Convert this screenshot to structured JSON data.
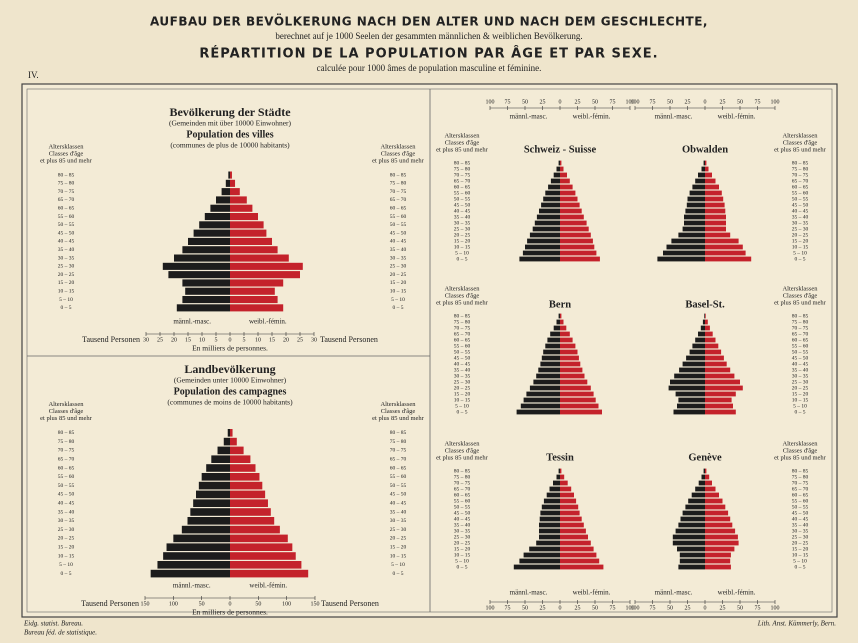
{
  "header": {
    "line1": "AUFBAU DER BEVÖLKERUNG NACH DEN ALTER UND NACH DEM GESCHLECHTE,",
    "line2": "berechnet auf je 1000 Seelen der gesammten männlichen & weiblichen Bevölkerung.",
    "line3": "RÉPARTITION DE LA POPULATION PAR ÂGE ET PAR SEXE.",
    "line4": "calculée pour 1000 âmes de population masculine et féminine.",
    "plate": "IV."
  },
  "footer": {
    "left1": "Eidg. statist. Bureau.",
    "left2": "Bureau féd. de statistique.",
    "right": "Lith. Anst. Kümmerly, Bern."
  },
  "chart_data": [
    {
      "type": "pyramid",
      "title": "Bevölkerung der Städte",
      "subtitle": "(Gemeinden mit über 10000 Einwohner)",
      "title_fr": "Population des villes",
      "subtitle_fr": "(communes de plus de 10000 habitants)",
      "age_header": [
        "Altersklassen",
        "Classes d'âge",
        "et plus 85 und mehr"
      ],
      "categories": [
        "0 – 5",
        "5 – 10",
        "10 – 15",
        "15 – 20",
        "20 – 25",
        "25 – 30",
        "30 – 35",
        "35 – 40",
        "40 – 45",
        "45 – 50",
        "50 – 55",
        "55 – 60",
        "60 – 65",
        "65 – 70",
        "70 – 75",
        "75 – 80",
        "80 – 85"
      ],
      "series": [
        {
          "name": "männl.-masc.",
          "color": "#1c1c1c",
          "values": [
            19,
            17,
            16,
            17,
            22,
            24,
            20,
            17,
            15,
            13,
            11,
            9,
            7,
            5,
            3,
            1.5,
            0.6
          ]
        },
        {
          "name": "weibl.-fémin.",
          "color": "#c4222b",
          "values": [
            19,
            17,
            16,
            19,
            25,
            26,
            21,
            17,
            15,
            13,
            12,
            10,
            8,
            6,
            3.5,
            1.8,
            0.7
          ]
        }
      ],
      "xlim": [
        0,
        30
      ],
      "xticks": [
        0,
        5,
        10,
        15,
        20,
        25,
        30
      ],
      "unit": "Tausend Personen",
      "unit_fr": "En milliers de personnes."
    },
    {
      "type": "pyramid",
      "title": "Landbevölkerung",
      "subtitle": "(Gemeinden unter 10000 Einwohner)",
      "title_fr": "Population des campagnes",
      "subtitle_fr": "(communes de moins de 10000 habitants)",
      "age_header": [
        "Altersklassen",
        "Classes d'âge",
        "et plus 85 und mehr"
      ],
      "categories": [
        "0 – 5",
        "5 – 10",
        "10 – 15",
        "15 – 20",
        "20 – 25",
        "25 – 30",
        "30 – 35",
        "35 – 40",
        "40 – 45",
        "45 – 50",
        "50 – 55",
        "55 – 60",
        "60 – 65",
        "65 – 70",
        "70 – 75",
        "75 – 80",
        "80 – 85"
      ],
      "series": [
        {
          "name": "männl.-masc.",
          "color": "#1c1c1c",
          "values": [
            140,
            128,
            118,
            112,
            100,
            85,
            75,
            70,
            65,
            60,
            55,
            50,
            42,
            33,
            22,
            11,
            4
          ]
        },
        {
          "name": "weibl.-fémin.",
          "color": "#c4222b",
          "values": [
            138,
            126,
            116,
            110,
            102,
            88,
            78,
            72,
            67,
            62,
            57,
            52,
            45,
            36,
            24,
            12,
            4.5
          ]
        }
      ],
      "xlim": [
        0,
        150
      ],
      "xticks": [
        0,
        50,
        100,
        150
      ],
      "unit": "Tausend Personen",
      "unit_fr": "En milliers de personnes."
    },
    {
      "type": "pyramid",
      "title": "Schweiz - Suisse",
      "age_header": [
        "Altersklassen",
        "Classes d'âge",
        "et plus 85 und mehr"
      ],
      "categories": [
        "0 – 5",
        "5 – 10",
        "10 – 15",
        "15 – 20",
        "20 – 25",
        "25 – 30",
        "30 – 35",
        "35 – 40",
        "40 – 45",
        "45 – 50",
        "50 – 55",
        "55 – 60",
        "60 – 65",
        "65 – 70",
        "70 – 75",
        "75 – 80",
        "80 – 85"
      ],
      "series": [
        {
          "name": "männl.-masc.",
          "color": "#1c1c1c",
          "values": [
            58,
            53,
            50,
            47,
            43,
            39,
            36,
            33,
            30,
            27,
            24,
            21,
            17,
            13,
            9,
            5,
            2
          ]
        },
        {
          "name": "weibl.-fémin.",
          "color": "#c4222b",
          "values": [
            57,
            52,
            49,
            47,
            44,
            41,
            38,
            34,
            31,
            28,
            25,
            22,
            18,
            14,
            10,
            5,
            2
          ]
        }
      ],
      "xlim": [
        0,
        100
      ],
      "xticks": [
        0,
        25,
        50,
        75,
        100
      ]
    },
    {
      "type": "pyramid",
      "title": "Obwalden",
      "age_header": [
        "Altersklassen",
        "Classes d'âge",
        "et plus 85 und mehr"
      ],
      "categories": [
        "0 – 5",
        "5 – 10",
        "10 – 15",
        "15 – 20",
        "20 – 25",
        "25 – 30",
        "30 – 35",
        "35 – 40",
        "40 – 45",
        "45 – 50",
        "50 – 55",
        "55 – 60",
        "60 – 65",
        "65 – 70",
        "70 – 75",
        "75 – 80",
        "80 – 85"
      ],
      "series": [
        {
          "name": "männl.-masc.",
          "color": "#1c1c1c",
          "values": [
            68,
            60,
            55,
            48,
            38,
            32,
            30,
            30,
            28,
            26,
            25,
            22,
            18,
            14,
            10,
            5,
            2
          ]
        },
        {
          "name": "weibl.-fémin.",
          "color": "#c4222b",
          "values": [
            66,
            58,
            54,
            48,
            36,
            30,
            30,
            30,
            29,
            28,
            26,
            24,
            20,
            15,
            10,
            5,
            2
          ]
        }
      ],
      "xlim": [
        0,
        100
      ],
      "xticks": [
        0,
        25,
        50,
        75,
        100
      ]
    },
    {
      "type": "pyramid",
      "title": "Bern",
      "age_header": [
        "Altersklassen",
        "Classes d'âge",
        "et plus 85 und mehr"
      ],
      "categories": [
        "0 – 5",
        "5 – 10",
        "10 – 15",
        "15 – 20",
        "20 – 25",
        "25 – 30",
        "30 – 35",
        "35 – 40",
        "40 – 45",
        "45 – 50",
        "50 – 55",
        "55 – 60",
        "60 – 65",
        "65 – 70",
        "70 – 75",
        "75 – 80",
        "80 – 85"
      ],
      "series": [
        {
          "color": "#1c1c1c",
          "values": [
            62,
            56,
            52,
            48,
            43,
            38,
            34,
            31,
            28,
            26,
            24,
            21,
            18,
            14,
            9,
            5,
            2
          ]
        },
        {
          "color": "#c4222b",
          "values": [
            60,
            55,
            51,
            48,
            44,
            39,
            35,
            32,
            29,
            27,
            25,
            22,
            18,
            14,
            9,
            5,
            2
          ]
        }
      ],
      "xlim": [
        0,
        100
      ]
    },
    {
      "type": "pyramid",
      "title": "Basel-St.",
      "age_header": [
        "Altersklassen",
        "Classes d'âge",
        "et plus 85 und mehr"
      ],
      "categories": [
        "0 – 5",
        "5 – 10",
        "10 – 15",
        "15 – 20",
        "20 – 25",
        "25 – 30",
        "30 – 35",
        "35 – 40",
        "40 – 45",
        "45 – 50",
        "50 – 55",
        "55 – 60",
        "60 – 65",
        "65 – 70",
        "70 – 75",
        "75 – 80",
        "80 – 85"
      ],
      "series": [
        {
          "color": "#1c1c1c",
          "values": [
            45,
            40,
            38,
            42,
            52,
            50,
            44,
            37,
            32,
            27,
            22,
            18,
            14,
            10,
            6,
            3,
            1
          ]
        },
        {
          "color": "#c4222b",
          "values": [
            44,
            40,
            38,
            44,
            54,
            50,
            42,
            36,
            31,
            27,
            23,
            19,
            15,
            11,
            7,
            4,
            1
          ]
        }
      ],
      "xlim": [
        0,
        100
      ]
    },
    {
      "type": "pyramid",
      "title": "Tessin",
      "age_header": [
        "Altersklassen",
        "Classes d'âge",
        "et plus 85 und mehr"
      ],
      "categories": [
        "0 – 5",
        "5 – 10",
        "10 – 15",
        "15 – 20",
        "20 – 25",
        "25 – 30",
        "30 – 35",
        "35 – 40",
        "40 – 45",
        "45 – 50",
        "50 – 55",
        "55 – 60",
        "60 – 65",
        "65 – 70",
        "70 – 75",
        "75 – 80",
        "80 – 85"
      ],
      "series": [
        {
          "name": "männl.-masc.",
          "color": "#1c1c1c",
          "values": [
            66,
            58,
            52,
            44,
            34,
            30,
            30,
            30,
            29,
            28,
            26,
            23,
            19,
            15,
            10,
            5,
            2
          ]
        },
        {
          "name": "weibl.-fémin.",
          "color": "#c4222b",
          "values": [
            62,
            56,
            52,
            48,
            44,
            40,
            37,
            34,
            31,
            28,
            26,
            23,
            20,
            16,
            11,
            6,
            2
          ]
        }
      ],
      "xlim": [
        0,
        100
      ],
      "xticks": [
        0,
        25,
        50,
        75,
        100
      ]
    },
    {
      "type": "pyramid",
      "title": "Genève",
      "age_header": [
        "Altersklassen",
        "Classes d'âge",
        "et plus 85 und mehr"
      ],
      "categories": [
        "0 – 5",
        "5 – 10",
        "10 – 15",
        "15 – 20",
        "20 – 25",
        "25 – 30",
        "30 – 35",
        "35 – 40",
        "40 – 45",
        "45 – 50",
        "50 – 55",
        "55 – 60",
        "60 – 65",
        "65 – 70",
        "70 – 75",
        "75 – 80",
        "80 – 85"
      ],
      "series": [
        {
          "name": "männl.-masc.",
          "color": "#1c1c1c",
          "values": [
            38,
            36,
            36,
            40,
            46,
            46,
            42,
            38,
            35,
            32,
            28,
            24,
            19,
            14,
            9,
            5,
            2
          ]
        },
        {
          "name": "weibl.-fémin.",
          "color": "#c4222b",
          "values": [
            37,
            36,
            37,
            42,
            48,
            47,
            43,
            39,
            36,
            33,
            29,
            25,
            20,
            15,
            10,
            6,
            2
          ]
        }
      ],
      "xlim": [
        0,
        100
      ],
      "xticks": [
        0,
        25,
        50,
        75,
        100
      ]
    }
  ]
}
